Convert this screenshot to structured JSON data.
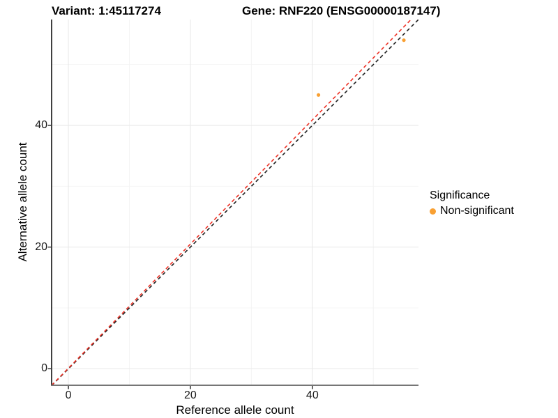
{
  "chart_data": {
    "type": "scatter",
    "title_left": "Variant: 1:45117274",
    "title_right": "Gene: RNF220 (ENSG00000187147)",
    "xlabel": "Reference allele count",
    "ylabel": "Alternative allele count",
    "xlim": [
      -2.75,
      57.4
    ],
    "ylim": [
      -2.7,
      57.4
    ],
    "x_ticks": [
      0,
      20,
      40
    ],
    "y_ticks": [
      0,
      20,
      40
    ],
    "x_minor_ticks": [
      10,
      30,
      50
    ],
    "y_minor_ticks": [
      10,
      30,
      50
    ],
    "grid": true,
    "series": [
      {
        "name": "Non-significant",
        "color": "#F9A032",
        "points": [
          {
            "x": 41,
            "y": 45
          },
          {
            "x": 55,
            "y": 54
          }
        ]
      }
    ],
    "lines": [
      {
        "name": "identity-line",
        "slope": 1.0,
        "intercept": 0,
        "color": "#1F1F1F",
        "style": "dashed"
      },
      {
        "name": "fitted-line",
        "slope": 1.02,
        "intercept": 0.1,
        "color": "#ED3125",
        "style": "dashed"
      }
    ],
    "legend": {
      "title": "Significance",
      "position": "right",
      "items": [
        {
          "label": "Non-significant",
          "color": "#F9A032"
        }
      ]
    }
  },
  "colors": {
    "grid_major": "#EAEAEA",
    "grid_minor": "#F4F4F4",
    "axis_left": "#000000",
    "axis_bottom": "#767676",
    "tick_mark": "#000000",
    "tick_text": "#1a1a1a"
  }
}
